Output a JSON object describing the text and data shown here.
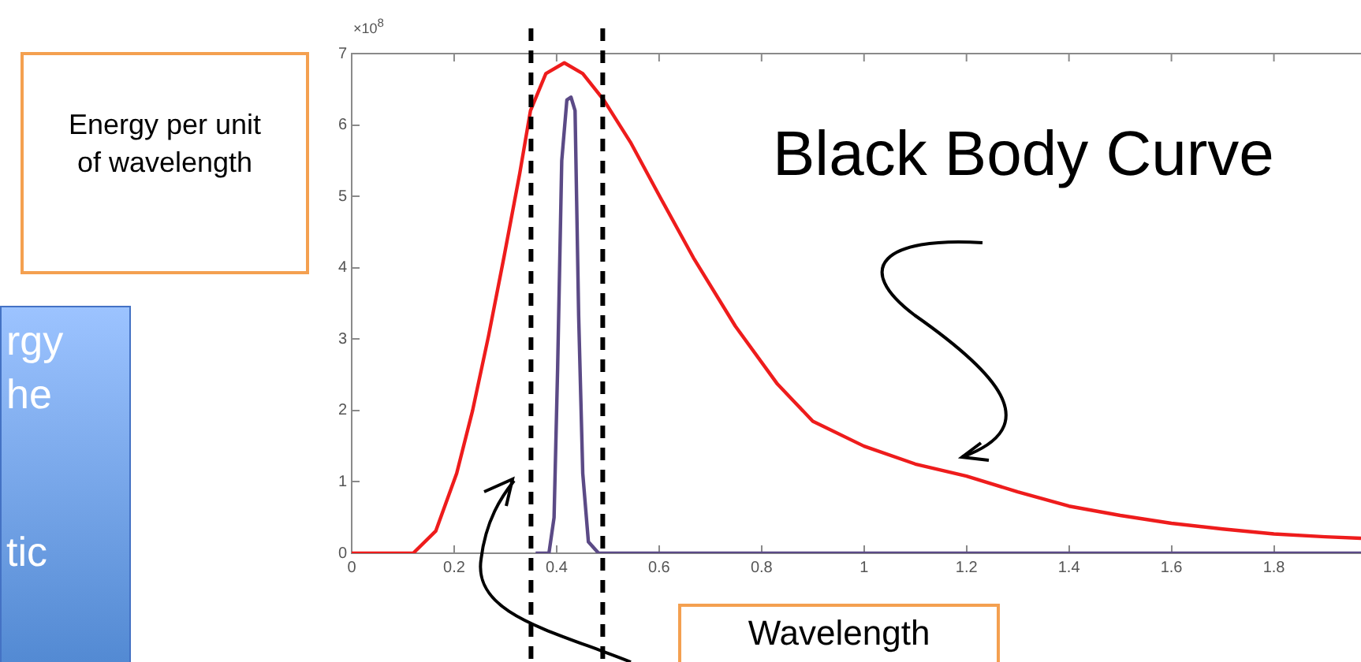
{
  "chart_data": {
    "type": "line",
    "title": "Black Body Curve",
    "xlabel": "Wavelength",
    "ylabel": "Energy per unit of wavelength",
    "annotations": [
      "×10$^{8}$",
      "rgy",
      "he",
      "tic"
    ],
    "xlim": [
      0,
      1.97
    ],
    "xticks": [
      0,
      0.2,
      0.4,
      0.6,
      0.8,
      1,
      1.2,
      1.4,
      1.6,
      1.8
    ],
    "ylim": [
      0,
      7
    ],
    "yticks": [
      0,
      1,
      2,
      3,
      4,
      5,
      6,
      7
    ],
    "grid": false,
    "legend": false,
    "marker": "none",
    "line_style": "solid",
    "ref_lines": [
      {
        "axis": "x",
        "value": 0.35,
        "color": "#000000",
        "line_style": "dashed"
      },
      {
        "axis": "x",
        "value": 0.49,
        "color": "#000000",
        "line_style": "dashed"
      }
    ],
    "series": [
      {
        "color": "#ee1c1c",
        "x": [
          0,
          0.12,
          0.164,
          0.205,
          0.236,
          0.267,
          0.297,
          0.328,
          0.349,
          0.379,
          0.415,
          0.451,
          0.492,
          0.544,
          0.605,
          0.667,
          0.749,
          0.831,
          0.9,
          1,
          1.1,
          1.2,
          1.3,
          1.4,
          1.5,
          1.6,
          1.7,
          1.8,
          1.9,
          1.97
        ],
        "values": [
          0,
          0,
          0.31,
          1.12,
          2,
          3.04,
          4.14,
          5.32,
          6.2,
          6.72,
          6.87,
          6.72,
          6.35,
          5.76,
          4.95,
          4.14,
          3.18,
          2.37,
          1.85,
          1.5,
          1.25,
          1.08,
          0.86,
          0.66,
          0.53,
          0.42,
          0.34,
          0.27,
          0.23,
          0.21
        ]
      },
      {
        "color": "#5b4a86",
        "x": [
          0.359,
          0.385,
          0.395,
          0.402,
          0.41,
          0.42,
          0.428,
          0.436,
          0.443,
          0.451,
          0.462,
          0.482,
          1,
          1.97
        ],
        "values": [
          0,
          0,
          0.5,
          2.6,
          5.5,
          6.35,
          6.39,
          6.2,
          3.33,
          1.12,
          0.16,
          0,
          0,
          0
        ]
      }
    ]
  }
}
